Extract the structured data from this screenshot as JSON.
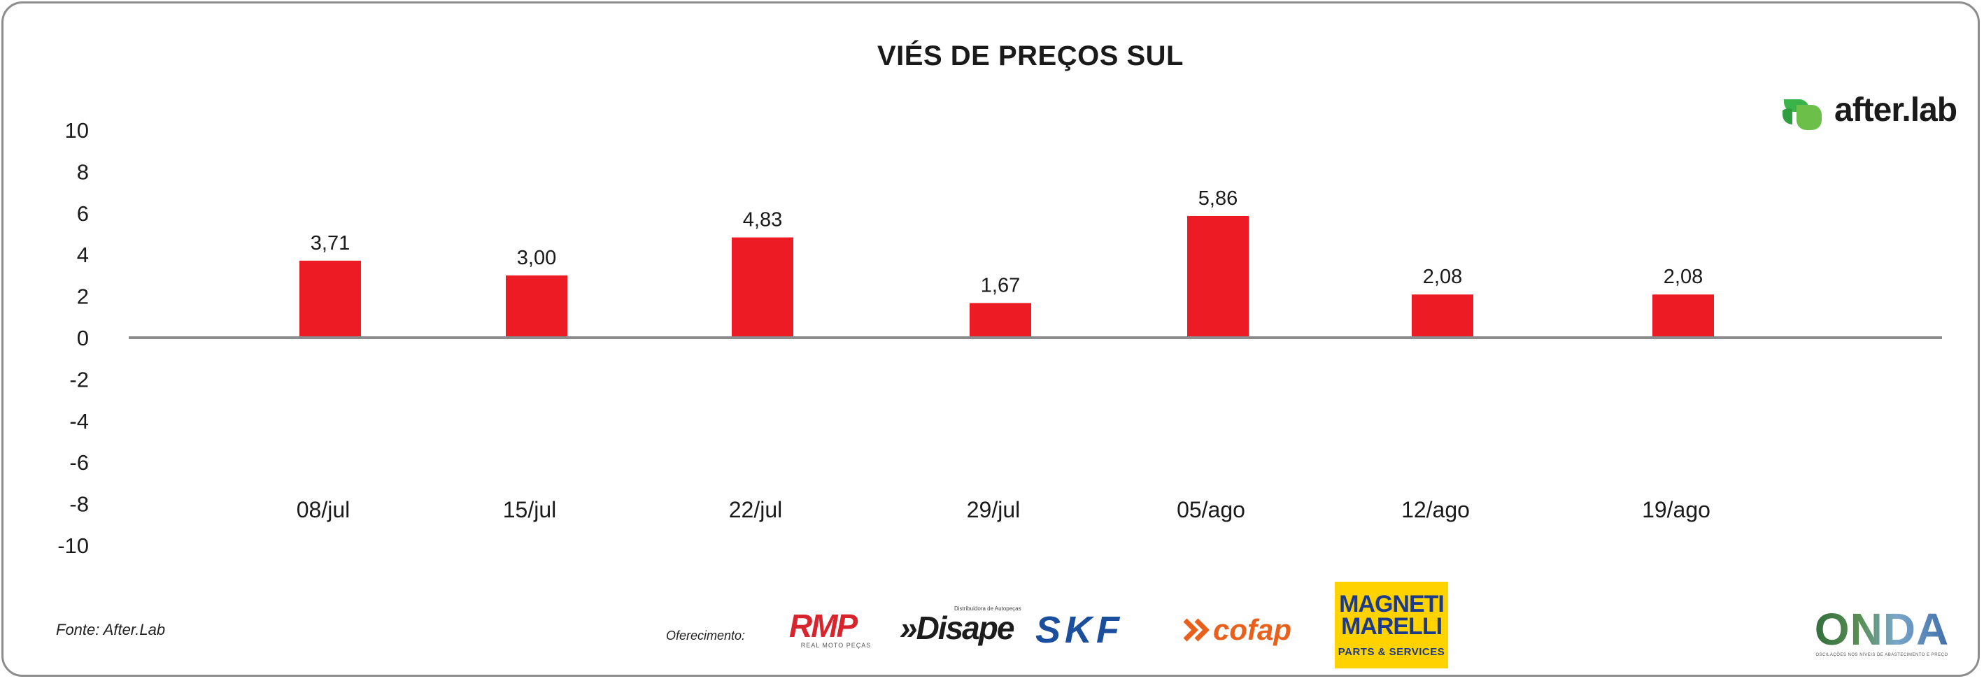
{
  "chart_data": {
    "type": "bar",
    "title": "VIÉS DE PREÇOS SUL",
    "categories": [
      "08/jul",
      "15/jul",
      "22/jul",
      "29/jul",
      "05/ago",
      "12/ago",
      "19/ago"
    ],
    "values": [
      3.71,
      3.0,
      4.83,
      1.67,
      5.86,
      2.08,
      2.08
    ],
    "data_labels": [
      "3,71",
      "3,00",
      "4,83",
      "1,67",
      "5,86",
      "2,08",
      "2,08"
    ],
    "yticks": [
      10,
      8,
      6,
      4,
      2,
      0,
      -2,
      -4,
      -6,
      -8,
      -10
    ],
    "ylim": [
      -10,
      10
    ],
    "xlabel": "",
    "ylabel": "",
    "bar_color": "#ed1c24",
    "axis_color": "#8c8c8c",
    "grid": false,
    "legend": false
  },
  "source": "Fonte: After.Lab",
  "sponsor_label": "Oferecimento:",
  "logos": {
    "afterlab": "after.lab",
    "rmp": "RMP",
    "rmp_sub": "REAL MOTO PEÇAS",
    "disape": "»Disape",
    "disape_sub": "Distribuidora de Autopeças",
    "skf": "SKF",
    "cofap": "cofap",
    "magneti": "MAGNETI MARELLI",
    "magneti_sub": "PARTS & SERVICES",
    "onda": "ONDA",
    "onda_sub": "OSCILAÇÕES NOS NÍVEIS DE ABASTECIMENTO E PREÇO"
  }
}
